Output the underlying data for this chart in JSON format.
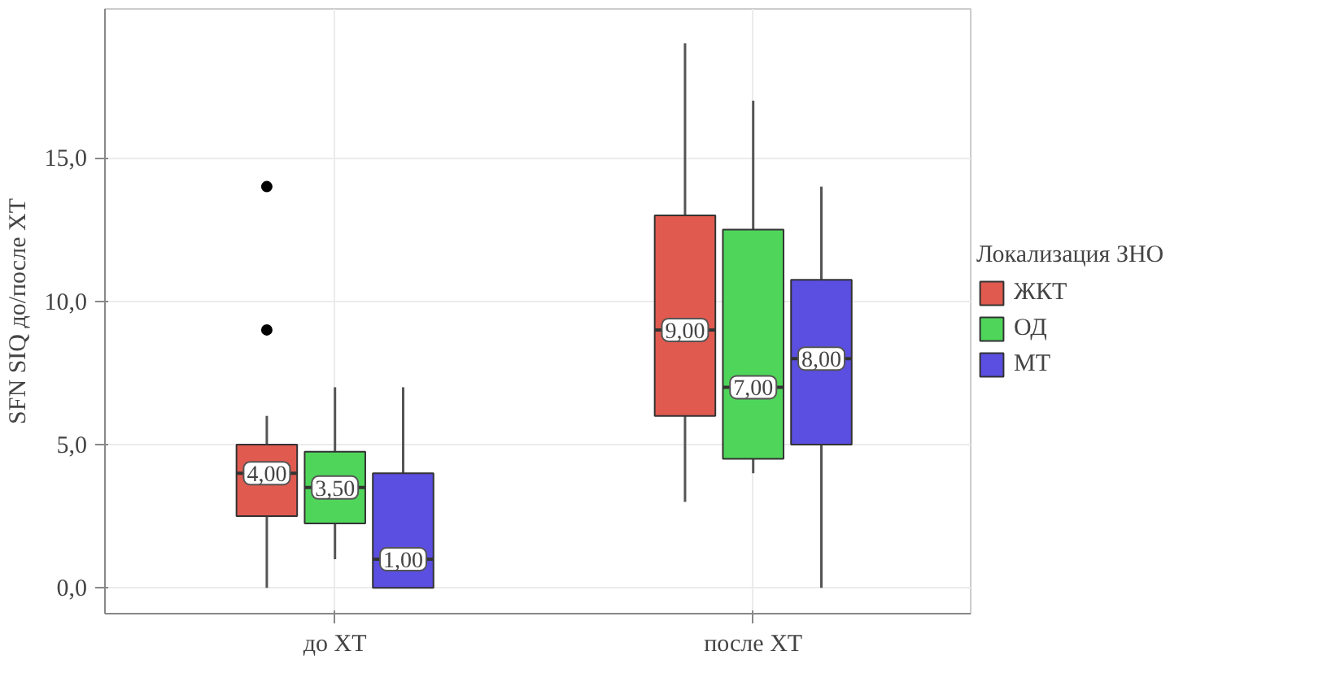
{
  "chart_data": {
    "type": "box",
    "ylabel": "SFN SIQ до/после ХТ",
    "legend_title": "Локализация ЗНО",
    "categories": [
      "до ХТ",
      "после ХТ"
    ],
    "ylim": [
      -0.9,
      20.2
    ],
    "yticks": [
      {
        "value": 0,
        "label": "0,0"
      },
      {
        "value": 5,
        "label": "5,0"
      },
      {
        "value": 10,
        "label": "10,0"
      },
      {
        "value": 15,
        "label": "15,0"
      }
    ],
    "grid": true,
    "legend": "right",
    "series": [
      {
        "name": "ЖКТ",
        "color": "#e05a4f",
        "boxes": [
          {
            "low": 0,
            "q1": 2.5,
            "median": 4,
            "q3": 5,
            "high": 6,
            "outliers": [
              9,
              14
            ]
          },
          {
            "low": 3,
            "q1": 6,
            "median": 9,
            "q3": 13,
            "high": 19
          }
        ],
        "value_labels": [
          "4,00",
          "9,00"
        ]
      },
      {
        "name": "ОД",
        "color": "#4fd65a",
        "boxes": [
          {
            "low": 1,
            "q1": 2.25,
            "median": 3.5,
            "q3": 4.75,
            "high": 7
          },
          {
            "low": 4,
            "q1": 4.5,
            "median": 7,
            "q3": 12.5,
            "high": 17
          }
        ],
        "value_labels": [
          "3,50",
          "7,00"
        ]
      },
      {
        "name": "МТ",
        "color": "#5a4fe0",
        "boxes": [
          {
            "low": 0,
            "q1": 0,
            "median": 1,
            "q3": 4,
            "high": 7
          },
          {
            "low": 0,
            "q1": 5,
            "median": 8,
            "q3": 10.75,
            "high": 14
          }
        ],
        "value_labels": [
          "1,00",
          "8,00"
        ]
      }
    ]
  }
}
